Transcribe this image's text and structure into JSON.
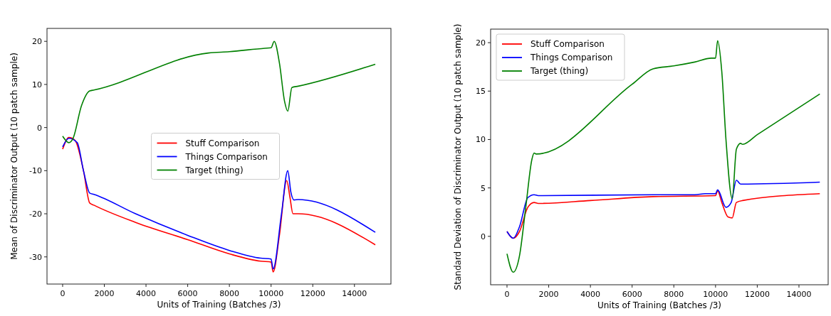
{
  "chart_data": [
    {
      "type": "line",
      "xlabel": "Units of Training (Batches /3)",
      "ylabel": "Mean of Discriminator Output (10 patch sample)",
      "xlim": [
        -750,
        15750
      ],
      "xticks": [
        0,
        2000,
        4000,
        6000,
        8000,
        10000,
        12000,
        14000
      ],
      "ylim": [
        -36.3,
        23
      ],
      "yticks": [
        -30,
        -20,
        -10,
        0,
        10,
        20
      ],
      "legend": "center",
      "grid": false,
      "series": [
        {
          "name": "Stuff Comparison",
          "color": "#ff0000",
          "x": [
            0,
            300,
            600,
            1000,
            1300,
            1500,
            3500,
            6000,
            8000,
            9500,
            10000,
            10100,
            10400,
            10750,
            10900,
            11050,
            11300,
            15000
          ],
          "values": [
            -5,
            -2.3,
            -3,
            -10,
            -17.5,
            -18,
            -22,
            -26,
            -29.3,
            -31,
            -31.2,
            -33.5,
            -25,
            -12.3,
            -16,
            -20,
            -20,
            -27.2
          ]
        },
        {
          "name": "Things Comparison",
          "color": "#0000ff",
          "x": [
            0,
            300,
            700,
            1000,
            1300,
            1500,
            3500,
            6000,
            8000,
            9500,
            10000,
            10100,
            10500,
            10800,
            10950,
            11100,
            11300,
            15000
          ],
          "values": [
            -4.5,
            -2.5,
            -3.5,
            -10,
            -15.2,
            -15.5,
            -20,
            -25,
            -28.5,
            -30.3,
            -30.5,
            -32.8,
            -20,
            -10,
            -15,
            -16.8,
            -16.7,
            -24.3
          ]
        },
        {
          "name": "Target (thing)",
          "color": "#008000",
          "x": [
            0,
            300,
            500,
            900,
            1300,
            1500,
            7000,
            8000,
            9700,
            10000,
            10150,
            10400,
            10650,
            10800,
            11000,
            11300,
            15000
          ],
          "values": [
            -2,
            -3.5,
            -2.5,
            5,
            8.5,
            8.7,
            17.3,
            17.6,
            18.4,
            18.5,
            20,
            15,
            6,
            3.8,
            9.3,
            9.6,
            14.7
          ]
        }
      ]
    },
    {
      "type": "line",
      "xlabel": "Units of Training (Batches /3)",
      "ylabel": "Standard Deviation of Discriminator Output (10 patch sample)",
      "xlim": [
        -785,
        15400
      ],
      "xticks": [
        0,
        2000,
        4000,
        6000,
        8000,
        10000,
        12000,
        14000
      ],
      "ylim": [
        -5,
        21.4
      ],
      "yticks": [
        0,
        5,
        10,
        15,
        20
      ],
      "legend": "top left",
      "grid": false,
      "series": [
        {
          "name": "Stuff Comparison",
          "color": "#ff0000",
          "x": [
            0,
            300,
            600,
            1000,
            1300,
            1500,
            4000,
            7000,
            10000,
            10100,
            10300,
            10600,
            10800,
            11000,
            11300,
            15000
          ],
          "values": [
            0.5,
            -0.2,
            0.5,
            3,
            3.5,
            3.4,
            3.7,
            4.1,
            4.2,
            4.7,
            3.5,
            2,
            1.9,
            3.5,
            3.7,
            4.4
          ]
        },
        {
          "name": "Things Comparison",
          "color": "#0000ff",
          "x": [
            0,
            300,
            600,
            1000,
            1300,
            1500,
            7000,
            9000,
            9500,
            10000,
            10100,
            10500,
            10750,
            11000,
            11200,
            15000
          ],
          "values": [
            0.5,
            -0.2,
            1,
            4,
            4.3,
            4.2,
            4.3,
            4.3,
            4.4,
            4.4,
            4.8,
            3,
            3.5,
            5.8,
            5.4,
            5.6
          ]
        },
        {
          "name": "Target (thing)",
          "color": "#008000",
          "x": [
            0,
            300,
            600,
            900,
            1200,
            1300,
            1400,
            6000,
            7000,
            8000,
            9000,
            9800,
            10000,
            10100,
            10300,
            10500,
            10800,
            11000,
            11200,
            11300,
            12000,
            15000
          ],
          "values": [
            -1.8,
            -3.7,
            -2,
            3,
            8,
            8.6,
            8.5,
            15.7,
            17.3,
            17.6,
            18,
            18.4,
            18.4,
            20.2,
            17,
            10,
            3.9,
            9,
            9.6,
            9.5,
            10.5,
            14.7
          ]
        }
      ]
    }
  ]
}
